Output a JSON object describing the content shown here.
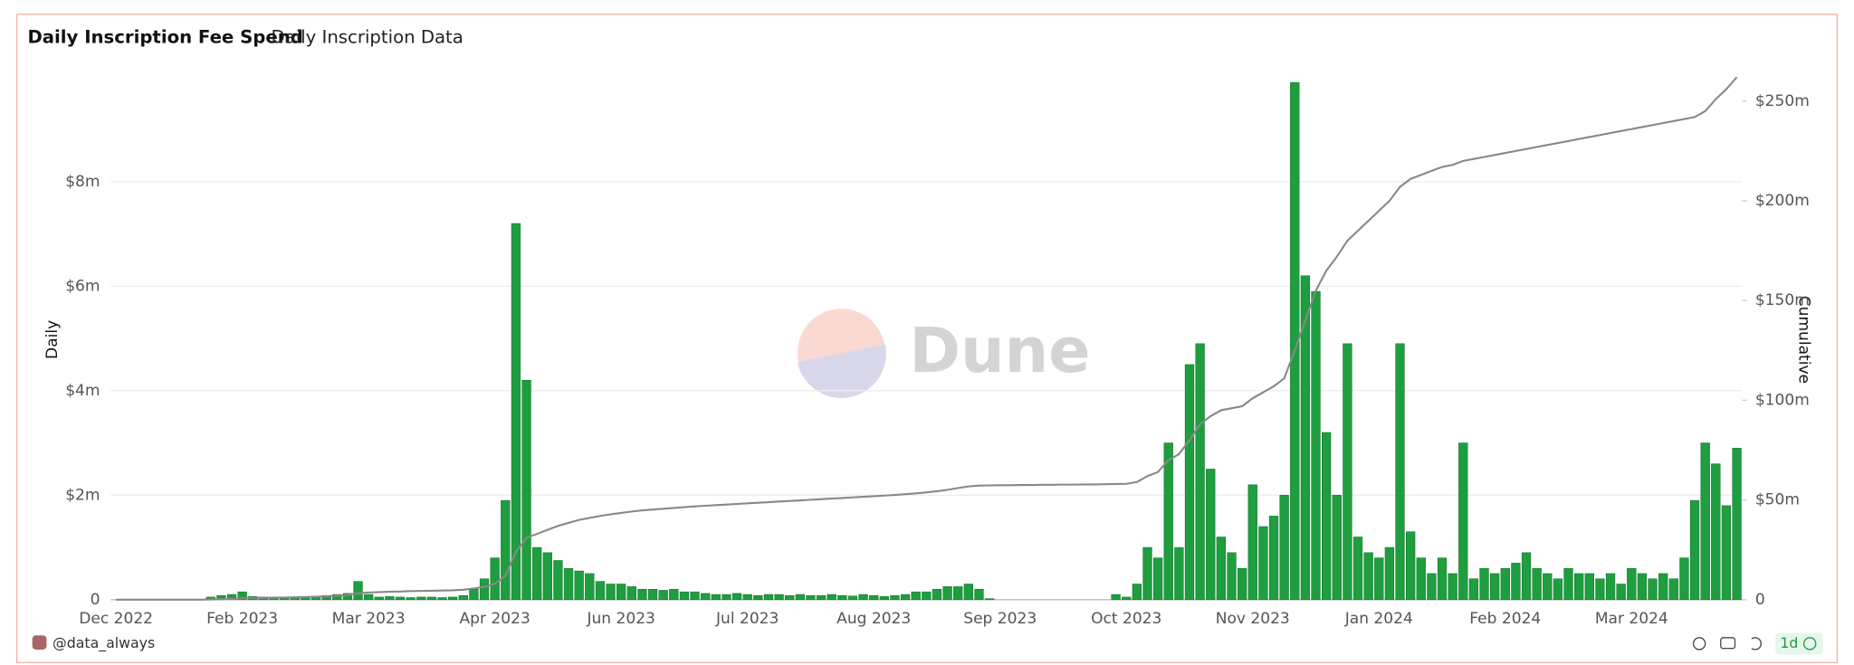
{
  "chart_data": {
    "type": "bar",
    "title": "Daily Inscription Fee Spend",
    "subtitle": "Daily Inscription Data",
    "y_label": "Daily",
    "y2_label": "Cumulative",
    "watermark": "Dune",
    "author": "@data_always",
    "interval": "1d",
    "categories": [
      "Dec 2022",
      null,
      null,
      null,
      null,
      null,
      null,
      null,
      null,
      null,
      null,
      null,
      "Feb 2023",
      null,
      null,
      null,
      null,
      null,
      null,
      null,
      null,
      null,
      null,
      null,
      "Mar 2023",
      null,
      null,
      null,
      null,
      null,
      null,
      null,
      null,
      null,
      null,
      null,
      "Apr 2023",
      null,
      null,
      null,
      null,
      null,
      null,
      null,
      null,
      null,
      null,
      null,
      "Jun 2023",
      null,
      null,
      null,
      null,
      null,
      null,
      null,
      null,
      null,
      null,
      null,
      "Jul 2023",
      null,
      null,
      null,
      null,
      null,
      null,
      null,
      null,
      null,
      null,
      null,
      "Aug 2023",
      null,
      null,
      null,
      null,
      null,
      null,
      null,
      null,
      null,
      null,
      null,
      "Sep 2023",
      null,
      null,
      null,
      null,
      null,
      null,
      null,
      null,
      null,
      null,
      null,
      "Oct 2023",
      null,
      null,
      null,
      null,
      null,
      null,
      null,
      null,
      null,
      null,
      null,
      "Nov 2023",
      null,
      null,
      null,
      null,
      null,
      null,
      null,
      null,
      null,
      null,
      null,
      "Jan 2024",
      null,
      null,
      null,
      null,
      null,
      null,
      null,
      null,
      null,
      null,
      null,
      "Feb 2024",
      null,
      null,
      null,
      null,
      null,
      null,
      null,
      null,
      null,
      null,
      null,
      "Mar 2024",
      null,
      null,
      null,
      null,
      null,
      null,
      null,
      null,
      null,
      null
    ],
    "series": [
      {
        "type": "bar",
        "color": "#1e9e3f",
        "axis": "y",
        "values": [
          0,
          0,
          0,
          0,
          0,
          0,
          0,
          0,
          0,
          0.05,
          0.08,
          0.1,
          0.15,
          0.06,
          0.05,
          0.04,
          0.05,
          0.05,
          0.05,
          0.06,
          0.08,
          0.1,
          0.12,
          0.35,
          0.1,
          0.05,
          0.06,
          0.05,
          0.04,
          0.05,
          0.05,
          0.04,
          0.05,
          0.08,
          0.2,
          0.4,
          0.8,
          1.9,
          7.2,
          4.2,
          1.0,
          0.9,
          0.75,
          0.6,
          0.55,
          0.5,
          0.35,
          0.3,
          0.3,
          0.25,
          0.2,
          0.2,
          0.18,
          0.2,
          0.15,
          0.15,
          0.12,
          0.1,
          0.1,
          0.12,
          0.1,
          0.08,
          0.1,
          0.1,
          0.08,
          0.1,
          0.08,
          0.08,
          0.1,
          0.08,
          0.07,
          0.1,
          0.08,
          0.06,
          0.08,
          0.1,
          0.15,
          0.15,
          0.2,
          0.25,
          0.25,
          0.3,
          0.2,
          0.02,
          0,
          0,
          0,
          0,
          0,
          0,
          0,
          0,
          0,
          0,
          0,
          0.1,
          0.05,
          0.3,
          1.0,
          0.8,
          3.0,
          1.0,
          4.5,
          4.9,
          2.5,
          1.2,
          0.9,
          0.6,
          2.2,
          1.4,
          1.6,
          2.0,
          9.9,
          6.2,
          5.9,
          3.2,
          2.0,
          4.9,
          1.2,
          0.9,
          0.8,
          1.0,
          4.9,
          1.3,
          0.8,
          0.5,
          0.8,
          0.5,
          3.0,
          0.4,
          0.6,
          0.5,
          0.6,
          0.7,
          0.9,
          0.6,
          0.5,
          0.4,
          0.6,
          0.5,
          0.5,
          0.4,
          0.5,
          0.3,
          0.6,
          0.5,
          0.4,
          0.5,
          0.4,
          0.8,
          1.9,
          3.0,
          2.6,
          1.8,
          2.9
        ]
      },
      {
        "type": "line",
        "color": "#888888",
        "axis": "y2",
        "values": [
          0,
          0,
          0,
          0,
          0,
          0,
          0,
          0,
          0,
          0.1,
          0.2,
          0.4,
          0.7,
          0.8,
          0.9,
          1.0,
          1.1,
          1.2,
          1.3,
          1.5,
          1.7,
          2.0,
          2.3,
          3.3,
          3.6,
          3.8,
          4.0,
          4.1,
          4.3,
          4.4,
          4.5,
          4.6,
          4.7,
          5.0,
          5.6,
          6.5,
          8,
          12,
          24,
          31,
          33,
          35,
          37,
          38.5,
          40,
          41,
          42,
          42.8,
          43.5,
          44.2,
          44.8,
          45.2,
          45.6,
          46,
          46.4,
          46.8,
          47.1,
          47.4,
          47.7,
          48,
          48.3,
          48.6,
          48.9,
          49.2,
          49.5,
          49.8,
          50.1,
          50.4,
          50.7,
          51,
          51.3,
          51.6,
          51.9,
          52.2,
          52.5,
          52.9,
          53.3,
          53.8,
          54.4,
          55.1,
          56,
          56.8,
          57.2,
          57.3,
          57.4,
          57.4,
          57.5,
          57.5,
          57.6,
          57.6,
          57.7,
          57.7,
          57.8,
          57.8,
          57.9,
          58,
          58.1,
          59,
          62,
          64,
          70,
          73,
          80,
          88,
          92,
          95,
          96,
          97,
          101,
          104,
          107,
          111,
          125,
          140,
          155,
          165,
          172,
          180,
          185,
          190,
          195,
          200,
          207,
          211,
          213,
          215,
          217,
          218,
          220,
          221,
          222,
          223,
          224,
          225,
          226,
          227,
          228,
          229,
          230,
          231,
          232,
          233,
          234,
          235,
          236,
          237,
          238,
          239,
          240,
          241,
          242,
          245,
          251,
          256,
          262
        ]
      }
    ],
    "ylim": [
      0,
      10
    ],
    "yticks": [
      0,
      {
        "value": 2,
        "label": "$2m"
      },
      {
        "value": 4,
        "label": "$4m"
      },
      {
        "value": 6,
        "label": "$6m"
      },
      {
        "value": 8,
        "label": "$8m"
      }
    ],
    "y2lim": [
      0,
      262
    ],
    "y2ticks": [
      0,
      {
        "value": 50,
        "label": "$50m"
      },
      {
        "value": 100,
        "label": "$100m"
      },
      {
        "value": 150,
        "label": "$150m"
      },
      {
        "value": 200,
        "label": "$200m"
      },
      {
        "value": 250,
        "label": "$250m"
      }
    ],
    "grid": true
  }
}
